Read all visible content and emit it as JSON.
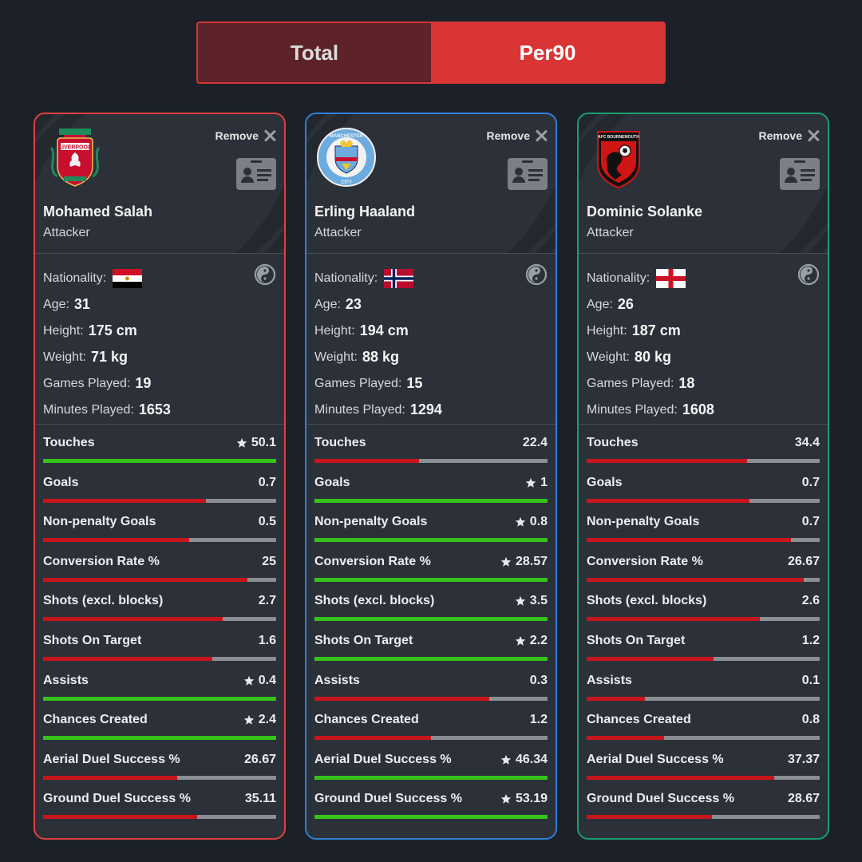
{
  "toggle": {
    "total_label": "Total",
    "per90_label": "Per90",
    "active": "Per90"
  },
  "colors": {
    "red": "#c8151b",
    "green": "#36c21a",
    "liverpool": "#e0403f",
    "mancity": "#2f7fd6",
    "bournemouth": "#1c9c6e"
  },
  "cards": [
    {
      "remove_label": "Remove",
      "crest_icon": "liverpool-crest",
      "name": "Mohamed Salah",
      "position": "Attacker",
      "nationality_label": "Nationality:",
      "flag": "egypt-flag",
      "bio": [
        {
          "label": "Age:",
          "value": "31"
        },
        {
          "label": "Height:",
          "value": "175 cm"
        },
        {
          "label": "Weight:",
          "value": "71 kg"
        },
        {
          "label": "Games Played:",
          "value": "19"
        },
        {
          "label": "Minutes Played:",
          "value": "1653"
        }
      ],
      "stats": [
        {
          "label": "Touches",
          "value": "50.1",
          "star": true,
          "fill": 1.0,
          "color": "green"
        },
        {
          "label": "Goals",
          "value": "0.7",
          "star": false,
          "fill": 0.7,
          "color": "red"
        },
        {
          "label": "Non-penalty Goals",
          "value": "0.5",
          "star": false,
          "fill": 0.625,
          "color": "red"
        },
        {
          "label": "Conversion Rate %",
          "value": "25",
          "star": false,
          "fill": 0.875,
          "color": "red"
        },
        {
          "label": "Shots (excl. blocks)",
          "value": "2.7",
          "star": false,
          "fill": 0.77,
          "color": "red"
        },
        {
          "label": "Shots On Target",
          "value": "1.6",
          "star": false,
          "fill": 0.727,
          "color": "red"
        },
        {
          "label": "Assists",
          "value": "0.4",
          "star": true,
          "fill": 1.0,
          "color": "green"
        },
        {
          "label": "Chances Created",
          "value": "2.4",
          "star": true,
          "fill": 1.0,
          "color": "green"
        },
        {
          "label": "Aerial Duel Success %",
          "value": "26.67",
          "star": false,
          "fill": 0.575,
          "color": "red"
        },
        {
          "label": "Ground Duel Success %",
          "value": "35.11",
          "star": false,
          "fill": 0.66,
          "color": "red"
        }
      ]
    },
    {
      "remove_label": "Remove",
      "crest_icon": "manchester-city-crest",
      "name": "Erling Haaland",
      "position": "Attacker",
      "nationality_label": "Nationality:",
      "flag": "norway-flag",
      "bio": [
        {
          "label": "Age:",
          "value": "23"
        },
        {
          "label": "Height:",
          "value": "194 cm"
        },
        {
          "label": "Weight:",
          "value": "88 kg"
        },
        {
          "label": "Games Played:",
          "value": "15"
        },
        {
          "label": "Minutes Played:",
          "value": "1294"
        }
      ],
      "stats": [
        {
          "label": "Touches",
          "value": "22.4",
          "star": false,
          "fill": 0.447,
          "color": "red"
        },
        {
          "label": "Goals",
          "value": "1",
          "star": true,
          "fill": 1.0,
          "color": "green"
        },
        {
          "label": "Non-penalty Goals",
          "value": "0.8",
          "star": true,
          "fill": 1.0,
          "color": "green"
        },
        {
          "label": "Conversion Rate %",
          "value": "28.57",
          "star": true,
          "fill": 1.0,
          "color": "green"
        },
        {
          "label": "Shots (excl. blocks)",
          "value": "3.5",
          "star": true,
          "fill": 1.0,
          "color": "green"
        },
        {
          "label": "Shots On Target",
          "value": "2.2",
          "star": true,
          "fill": 1.0,
          "color": "green"
        },
        {
          "label": "Assists",
          "value": "0.3",
          "star": false,
          "fill": 0.75,
          "color": "red"
        },
        {
          "label": "Chances Created",
          "value": "1.2",
          "star": false,
          "fill": 0.5,
          "color": "red"
        },
        {
          "label": "Aerial Duel Success %",
          "value": "46.34",
          "star": true,
          "fill": 1.0,
          "color": "green"
        },
        {
          "label": "Ground Duel Success %",
          "value": "53.19",
          "star": true,
          "fill": 1.0,
          "color": "green"
        }
      ]
    },
    {
      "remove_label": "Remove",
      "crest_icon": "bournemouth-crest",
      "name": "Dominic Solanke",
      "position": "Attacker",
      "nationality_label": "Nationality:",
      "flag": "england-flag",
      "bio": [
        {
          "label": "Age:",
          "value": "26"
        },
        {
          "label": "Height:",
          "value": "187 cm"
        },
        {
          "label": "Weight:",
          "value": "80 kg"
        },
        {
          "label": "Games Played:",
          "value": "18"
        },
        {
          "label": "Minutes Played:",
          "value": "1608"
        }
      ],
      "stats": [
        {
          "label": "Touches",
          "value": "34.4",
          "star": false,
          "fill": 0.687,
          "color": "red"
        },
        {
          "label": "Goals",
          "value": "0.7",
          "star": false,
          "fill": 0.7,
          "color": "red"
        },
        {
          "label": "Non-penalty Goals",
          "value": "0.7",
          "star": false,
          "fill": 0.875,
          "color": "red"
        },
        {
          "label": "Conversion Rate %",
          "value": "26.67",
          "star": false,
          "fill": 0.933,
          "color": "red"
        },
        {
          "label": "Shots (excl. blocks)",
          "value": "2.6",
          "star": false,
          "fill": 0.743,
          "color": "red"
        },
        {
          "label": "Shots On Target",
          "value": "1.2",
          "star": false,
          "fill": 0.545,
          "color": "red"
        },
        {
          "label": "Assists",
          "value": "0.1",
          "star": false,
          "fill": 0.25,
          "color": "red"
        },
        {
          "label": "Chances Created",
          "value": "0.8",
          "star": false,
          "fill": 0.333,
          "color": "red"
        },
        {
          "label": "Aerial Duel Success %",
          "value": "37.37",
          "star": false,
          "fill": 0.806,
          "color": "red"
        },
        {
          "label": "Ground Duel Success %",
          "value": "28.67",
          "star": false,
          "fill": 0.539,
          "color": "red"
        }
      ]
    }
  ]
}
